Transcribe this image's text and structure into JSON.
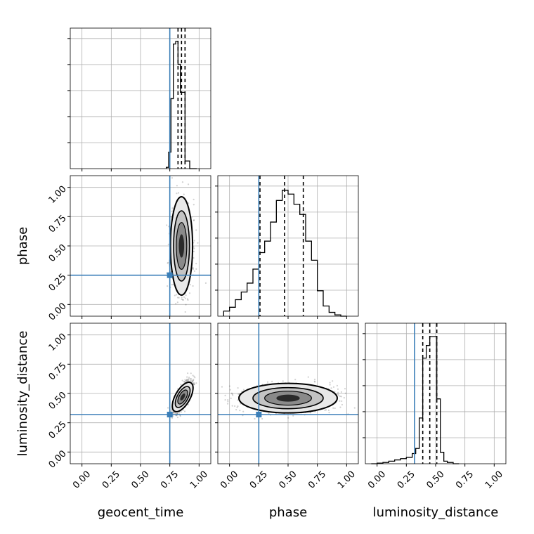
{
  "colors": {
    "truth": "#3b7fb8",
    "hist": "#000000",
    "grid": "#b0b0b0",
    "frame": "#000000"
  },
  "chart_data": {
    "type": "corner",
    "parameters": [
      "geocent_time",
      "phase",
      "luminosity_distance"
    ],
    "axis_range": [
      -0.1,
      1.1
    ],
    "ticks": [
      0.0,
      0.25,
      0.5,
      0.75,
      1.0
    ],
    "tick_labels": [
      "0.00",
      "0.25",
      "0.50",
      "0.75",
      "1.00"
    ],
    "truths": {
      "geocent_time": 0.75,
      "phase": 0.25,
      "luminosity_distance": 0.32
    },
    "grid": true,
    "marginals": [
      {
        "parameter": "geocent_time",
        "quantiles": [
          0.82,
          0.85,
          0.88
        ],
        "bins": [
          0.72,
          0.74,
          0.76,
          0.78,
          0.8,
          0.82,
          0.84,
          0.86,
          0.88,
          0.9,
          0.92,
          0.94,
          0.96,
          0.98
        ],
        "counts": [
          0.01,
          0.13,
          0.55,
          0.98,
          1.0,
          0.82,
          0.6,
          0.6,
          0.06,
          0.06,
          0.0,
          0.0,
          0.0
        ]
      },
      {
        "parameter": "phase",
        "quantiles": [
          0.26,
          0.47,
          0.63
        ],
        "bins": [
          -0.05,
          0.0,
          0.05,
          0.1,
          0.15,
          0.2,
          0.25,
          0.3,
          0.35,
          0.4,
          0.45,
          0.5,
          0.55,
          0.6,
          0.65,
          0.7,
          0.75,
          0.8,
          0.85,
          0.9,
          0.95,
          1.0
        ],
        "counts": [
          0.04,
          0.07,
          0.13,
          0.19,
          0.26,
          0.37,
          0.5,
          0.59,
          0.74,
          0.91,
          0.99,
          0.96,
          0.88,
          0.8,
          0.59,
          0.44,
          0.2,
          0.08,
          0.03,
          0.01,
          0.0
        ]
      },
      {
        "parameter": "luminosity_distance",
        "quantiles": [
          0.39,
          0.45,
          0.51
        ],
        "bins": [
          -0.05,
          0.0,
          0.05,
          0.1,
          0.15,
          0.2,
          0.25,
          0.3,
          0.33,
          0.36,
          0.39,
          0.42,
          0.45,
          0.48,
          0.51,
          0.54,
          0.57,
          0.6,
          0.65,
          0.7
        ],
        "counts": [
          0.0,
          0.005,
          0.01,
          0.02,
          0.03,
          0.04,
          0.05,
          0.08,
          0.12,
          0.36,
          0.83,
          0.93,
          1.0,
          1.0,
          0.51,
          0.09,
          0.02,
          0.01,
          0.0
        ]
      }
    ],
    "joints": [
      {
        "x": "geocent_time",
        "y": "phase",
        "center": [
          0.85,
          0.5
        ],
        "sigma": [
          0.045,
          0.2
        ],
        "corr": 0.0,
        "n_points": 700,
        "seed": 11
      },
      {
        "x": "geocent_time",
        "y": "luminosity_distance",
        "center": [
          0.86,
          0.47
        ],
        "sigma": [
          0.04,
          0.07
        ],
        "corr": 0.75,
        "n_points": 700,
        "seed": 23
      },
      {
        "x": "phase",
        "y": "luminosity_distance",
        "center": [
          0.5,
          0.46
        ],
        "sigma": [
          0.2,
          0.06
        ],
        "corr": 0.0,
        "n_points": 900,
        "seed": 37
      }
    ]
  }
}
